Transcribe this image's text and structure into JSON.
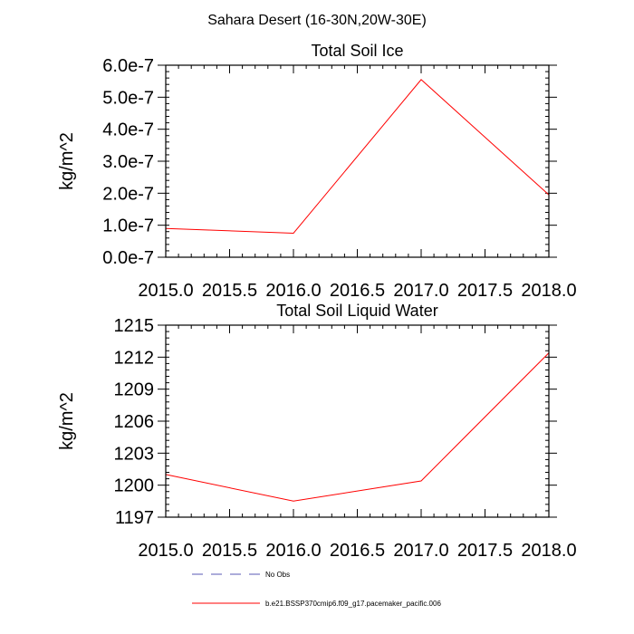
{
  "figure": {
    "suptitle": "Sahara Desert (16-30N,20W-30E)"
  },
  "chart_data": [
    {
      "type": "line",
      "title": "Total Soil Ice",
      "xlabel": "",
      "ylabel": "kg/m^2",
      "xlim": [
        2015.0,
        2018.0
      ],
      "ylim": [
        0.0,
        6e-07
      ],
      "x_ticks": [
        2015.0,
        2015.5,
        2016.0,
        2016.5,
        2017.0,
        2017.5,
        2018.0
      ],
      "x_tick_labels": [
        "2015.0",
        "2015.5",
        "2016.0",
        "2016.5",
        "2017.0",
        "2017.5",
        "2018.0"
      ],
      "y_ticks": [
        0.0,
        1e-07,
        2e-07,
        3e-07,
        4e-07,
        5e-07,
        6e-07
      ],
      "y_tick_labels": [
        "0.0e-7",
        "1.0e-7",
        "2.0e-7",
        "3.0e-7",
        "4.0e-7",
        "5.0e-7",
        "6.0e-7"
      ],
      "series": [
        {
          "name": "b.e21.BSSP370cmip6.f09_g17.pacemaker_pacific.006",
          "color": "#ff0000",
          "x": [
            2015.0,
            2016.0,
            2017.0,
            2018.0
          ],
          "y": [
            9e-08,
            7.5e-08,
            5.55e-07,
            1.95e-07
          ]
        }
      ],
      "grid": false
    },
    {
      "type": "line",
      "title": "Total Soil Liquid Water",
      "xlabel": "",
      "ylabel": "kg/m^2",
      "xlim": [
        2015.0,
        2018.0
      ],
      "ylim": [
        1197,
        1215
      ],
      "x_ticks": [
        2015.0,
        2015.5,
        2016.0,
        2016.5,
        2017.0,
        2017.5,
        2018.0
      ],
      "x_tick_labels": [
        "2015.0",
        "2015.5",
        "2016.0",
        "2016.5",
        "2017.0",
        "2017.5",
        "2018.0"
      ],
      "y_ticks": [
        1197,
        1200,
        1203,
        1206,
        1209,
        1212,
        1215
      ],
      "y_tick_labels": [
        "1197",
        "1200",
        "1203",
        "1206",
        "1209",
        "1212",
        "1215"
      ],
      "series": [
        {
          "name": "b.e21.BSSP370cmip6.f09_g17.pacemaker_pacific.006",
          "color": "#ff0000",
          "x": [
            2015.0,
            2016.0,
            2017.0,
            2018.0
          ],
          "y": [
            1201.0,
            1198.5,
            1200.4,
            1212.4
          ]
        }
      ],
      "grid": false
    }
  ],
  "legend": {
    "placement": "bottom",
    "entries": [
      {
        "label": "No Obs",
        "color": "#5a5ab4",
        "style": "dashed"
      },
      {
        "label": "b.e21.BSSP370cmip6.f09_g17.pacemaker_pacific.006",
        "color": "#ff0000",
        "style": "solid"
      }
    ]
  }
}
